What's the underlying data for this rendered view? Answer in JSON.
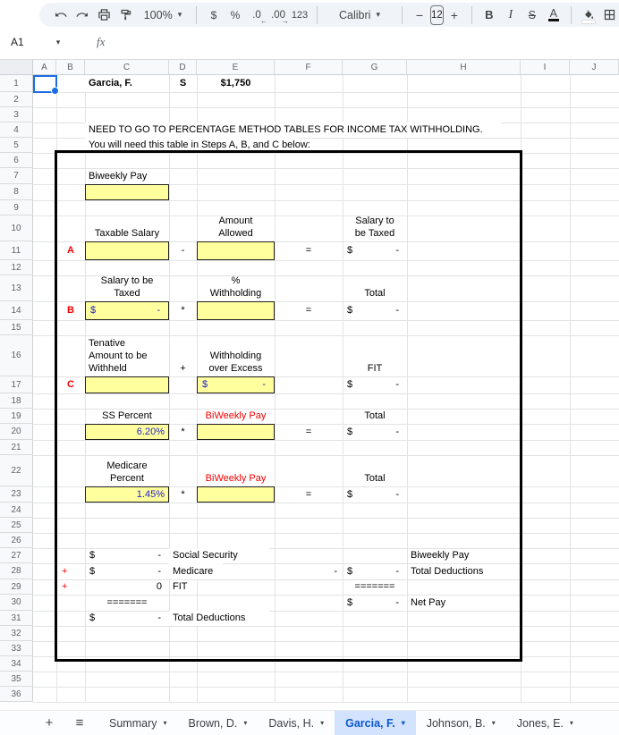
{
  "toolbar": {
    "zoom_value": "100%",
    "currency": "$",
    "percent": "%",
    "decimal_decrease": ".0",
    "decimal_increase": ".00",
    "number_format": "123",
    "font_name": "Calibri",
    "font_size": "12",
    "minus": "−",
    "plus": "+",
    "bold": "B",
    "italic": "I",
    "strikethrough": "S",
    "text_color": "A"
  },
  "formula_bar": {
    "cell_ref": "A1",
    "fx_label": "fx"
  },
  "grid": {
    "column_headers": [
      "A",
      "B",
      "C",
      "D",
      "E",
      "F",
      "G",
      "H",
      "I",
      "J"
    ],
    "row_numbers": [
      "1",
      "2",
      "3",
      "4",
      "5",
      "6",
      "7",
      "8",
      "9",
      "10",
      "11",
      "12",
      "13",
      "14",
      "15",
      "16",
      "17",
      "18",
      "19",
      "20",
      "21",
      "22",
      "23",
      "24",
      "25",
      "26",
      "27",
      "28",
      "29",
      "30",
      "31",
      "32",
      "33",
      "34",
      "35",
      "36"
    ]
  },
  "cells": {
    "c1": "Garcia, F.",
    "d1": "S",
    "e1": "$1,750",
    "c4": "NEED TO GO TO PERCENTAGE METHOD TABLES FOR INCOME TAX WITHHOLDING.",
    "c5": "You will need this table in Steps A, B, and C below:",
    "c7": "Biweekly Pay",
    "c10": "Taxable Salary",
    "e10": "Amount\nAllowed",
    "g10": "Salary to\nbe Taxed",
    "b11": "A",
    "d11": "-",
    "f11": "=",
    "g11_cur": "$",
    "g11_val": "-",
    "c13": "Salary to be\nTaxed",
    "e13": "%\nWithholding",
    "g13": "Total",
    "b14": "B",
    "c14_cur": "$",
    "c14_val": "-",
    "d14": "*",
    "f14": "=",
    "g14_cur": "$",
    "g14_val": "-",
    "c16": "Tenative\nAmount to be\nWithheld",
    "d16": "+",
    "e16": "Withholding\nover Excess",
    "g16": "FIT",
    "b17": "C",
    "e17_cur": "$",
    "e17_val": "-",
    "g17_cur": "$",
    "g17_val": "-",
    "c19": "SS Percent",
    "e19": "BiWeekly Pay",
    "g19": "Total",
    "c20": "6.20%",
    "d20": "*",
    "f20": "=",
    "g20_cur": "$",
    "g20_val": "-",
    "c22": "Medicare\nPercent",
    "e22": "BiWeekly Pay",
    "g22": "Total",
    "c23": "1.45%",
    "d23": "*",
    "f23": "=",
    "g23_cur": "$",
    "g23_val": "-",
    "c27_cur": "$",
    "c27_val": "-",
    "d27": "Social Security",
    "h27": "Biweekly Pay",
    "b28": "+",
    "c28_cur": "$",
    "c28_val": "-",
    "d28": "Medicare",
    "f28": "-",
    "g28_cur": "$",
    "g28_val": "-",
    "h28": "Total Deductions",
    "b29": "+",
    "c29": "0",
    "d29": "FIT",
    "g29": "=======",
    "c30": "=======",
    "g30_cur": "$",
    "g30_val": "-",
    "h30": "Net Pay",
    "c31_cur": "$",
    "c31_val": "-",
    "d31": "Total Deductions"
  },
  "footer": {
    "add_label": "+",
    "menu_label": "≡",
    "caret": "▾",
    "tabs": [
      {
        "label": "Summary",
        "active": false
      },
      {
        "label": "Brown, D.",
        "active": false
      },
      {
        "label": "Davis, H.",
        "active": false
      },
      {
        "label": "Garcia, F.",
        "active": true
      },
      {
        "label": "Johnson, B.",
        "active": false
      },
      {
        "label": "Jones, E.",
        "active": false
      }
    ]
  },
  "colors": {
    "accent_blue": "#1b6ce3",
    "active_tab_bg": "#d3e3fd",
    "active_tab_text": "#0b57d0",
    "input_highlight_yellow": "#ffff9e",
    "value_blue": "#2222cc",
    "label_red": "#f40000"
  }
}
